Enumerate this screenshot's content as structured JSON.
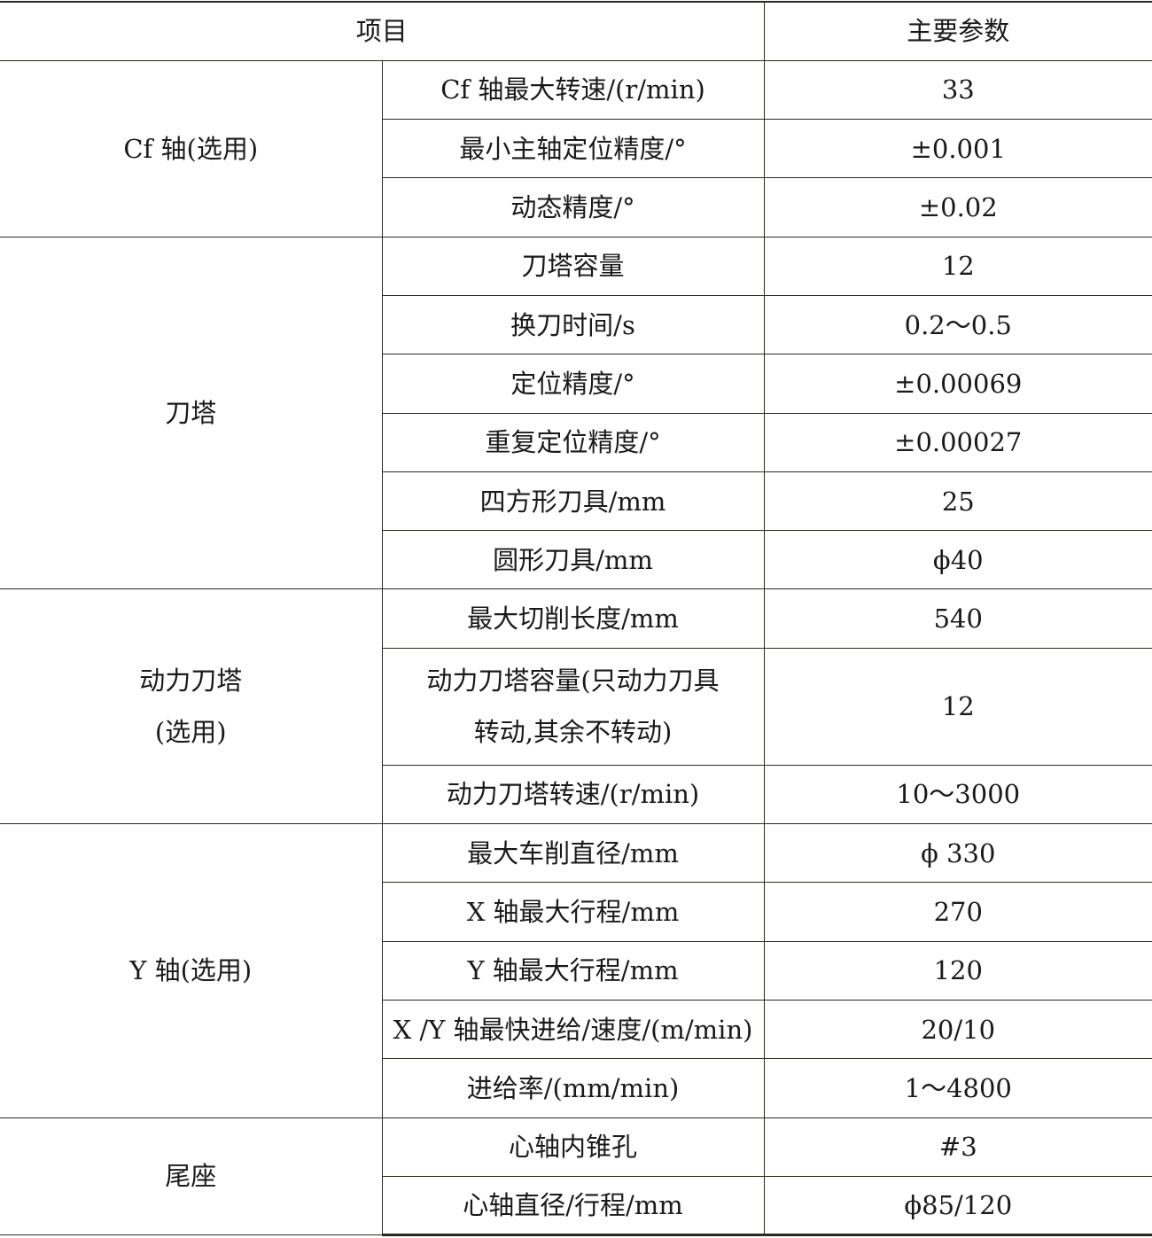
{
  "header": {
    "item": "项目",
    "params": "主要参数"
  },
  "groups": [
    {
      "name": "Cf 轴(选用)",
      "rows": [
        {
          "label": "Cf 轴最大转速/(r/min)",
          "value": "33"
        },
        {
          "label": "最小主轴定位精度/°",
          "value": "±0.001"
        },
        {
          "label": "动态精度/°",
          "value": "±0.02"
        }
      ]
    },
    {
      "name": "刀塔",
      "rows": [
        {
          "label": "刀塔容量",
          "value": "12"
        },
        {
          "label": "换刀时间/s",
          "value": "0.2～0.5"
        },
        {
          "label": "定位精度/°",
          "value": "±0.00069"
        },
        {
          "label": "重复定位精度/°",
          "value": "±0.00027"
        },
        {
          "label": "四方形刀具/mm",
          "value": "25"
        },
        {
          "label": "圆形刀具/mm",
          "value": "ϕ40"
        }
      ]
    },
    {
      "name_line1": "动力刀塔",
      "name_line2": "(选用)",
      "rows": [
        {
          "label": "最大切削长度/mm",
          "value": "540"
        },
        {
          "label_line1": "动力刀塔容量(只动力刀具",
          "label_line2": "转动,其余不转动)",
          "value": "12"
        },
        {
          "label": "动力刀塔转速/(r/min)",
          "value": "10～3000"
        }
      ]
    },
    {
      "name": "Y 轴(选用)",
      "rows": [
        {
          "label": "最大车削直径/mm",
          "value": "ϕ 330"
        },
        {
          "label": "X 轴最大行程/mm",
          "value": "270"
        },
        {
          "label": "Y 轴最大行程/mm",
          "value": "120"
        },
        {
          "label": "X /Y 轴最快进给/速度/(m/min)",
          "value": "20/10"
        },
        {
          "label": "进给率/(mm/min)",
          "value": "1～4800"
        }
      ]
    },
    {
      "name": "尾座",
      "rows": [
        {
          "label": "心轴内锥孔",
          "value": "#3"
        },
        {
          "label": "心轴直径/行程/mm",
          "value": "ϕ85/120"
        }
      ]
    }
  ]
}
